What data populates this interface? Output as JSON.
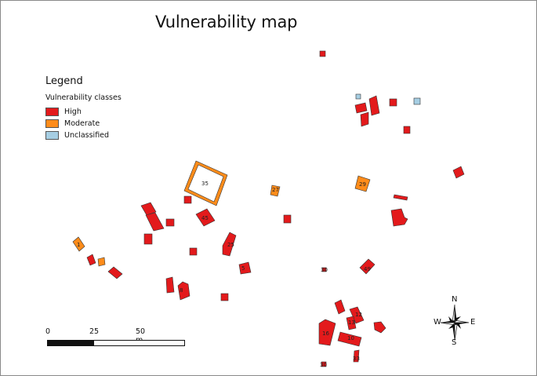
{
  "title": "Vulnerability map",
  "legend": {
    "title": "Legend",
    "subtitle": "Vulnerability classes",
    "classes": [
      {
        "label": "High",
        "color": "#e31a1c"
      },
      {
        "label": "Moderate",
        "color": "#ff8c1a"
      },
      {
        "label": "Unclassified",
        "color": "#a6cee3"
      }
    ]
  },
  "scalebar": {
    "labels": [
      "0",
      "25",
      "50 m"
    ]
  },
  "compass": {
    "n": "N",
    "s": "S",
    "e": "E",
    "w": "W"
  },
  "labels": {
    "p35": "35",
    "p27": "27",
    "p29": "29",
    "p45": "45",
    "p30a": "30",
    "p30b": "30",
    "p49": "49",
    "p16": "16",
    "p10": "10",
    "p12": "12",
    "p13": "13",
    "p33": "33",
    "p8": "8",
    "p25": "25",
    "p1": "1",
    "p5": "5"
  },
  "colors": {
    "high": "#e31a1c",
    "moderate": "#ff8c1a",
    "unclassified": "#a6cee3",
    "outline": "#333333"
  }
}
